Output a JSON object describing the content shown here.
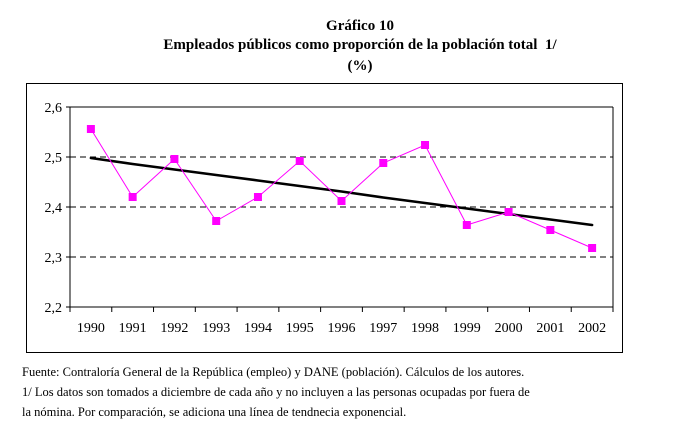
{
  "header": {
    "figure_label": "Gráfico 10",
    "title": "Empleados públicos como proporción de la población total  1/",
    "unit": "(%)"
  },
  "notes": {
    "source": "Fuente: Contraloría General de la República (empleo) y DANE (población). Cálculos de los autores.",
    "footnote_line1": "1/ Los datos son tomados a diciembre de cada año y no incluyen a las personas ocupadas por fuera de",
    "footnote_line2": "la nómina. Por comparación, se adiciona una línea de tendnecia exponencial."
  },
  "colors": {
    "series": "#ff00ff",
    "trend": "#000000",
    "grid": "#000000"
  },
  "chart_data": {
    "type": "line",
    "title": "Empleados públicos como proporción de la población total  1/",
    "subtitle": "(%)",
    "xlabel": "",
    "ylabel": "",
    "categories": [
      "1990",
      "1991",
      "1992",
      "1993",
      "1994",
      "1995",
      "1996",
      "1997",
      "1998",
      "1999",
      "2000",
      "2001",
      "2002"
    ],
    "series": [
      {
        "name": "Empleados públicos / población total",
        "marker": "square",
        "values": [
          2.556,
          2.42,
          2.496,
          2.372,
          2.42,
          2.492,
          2.412,
          2.488,
          2.524,
          2.364,
          2.39,
          2.354,
          2.318
        ]
      },
      {
        "name": "Tendencia exponencial",
        "style": "trendline",
        "values": [
          2.498,
          2.486,
          2.475,
          2.464,
          2.453,
          2.442,
          2.431,
          2.419,
          2.408,
          2.397,
          2.386,
          2.375,
          2.364
        ]
      }
    ],
    "ylim": [
      2.2,
      2.6
    ],
    "yticks": [
      "2,2",
      "2,3",
      "2,4",
      "2,5",
      "2,6"
    ],
    "ytick_values": [
      2.2,
      2.3,
      2.4,
      2.5,
      2.6
    ],
    "grid": "horizontal dashed",
    "legend": "none"
  }
}
